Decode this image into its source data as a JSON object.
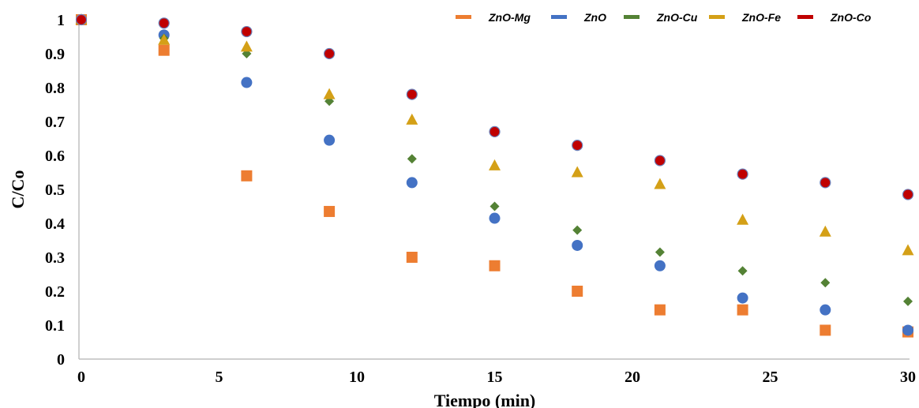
{
  "chart_data": {
    "type": "scatter",
    "title": "",
    "xlabel": "Tiempo (min)",
    "ylabel": "C/Co",
    "xlim": [
      0,
      30
    ],
    "ylim": [
      0,
      1
    ],
    "xticks": [
      "0",
      "5",
      "10",
      "15",
      "20",
      "25",
      "30"
    ],
    "yticks": [
      "0",
      "0.1",
      "0.2",
      "0.3",
      "0.4",
      "0.5",
      "0.6",
      "0.7",
      "0.8",
      "0.9",
      "1"
    ],
    "grid": false,
    "legend_position": "top-right",
    "x": [
      0,
      3,
      6,
      9,
      12,
      15,
      18,
      21,
      24,
      27,
      30
    ],
    "series": [
      {
        "name": "ZnO-Mg",
        "marker": "square",
        "color": "#ED7D31",
        "values": [
          1.0,
          0.91,
          0.54,
          0.435,
          0.3,
          0.275,
          0.2,
          0.145,
          0.145,
          0.085,
          0.08
        ]
      },
      {
        "name": "ZnO",
        "marker": "circle",
        "color": "#4472C4",
        "values": [
          1.0,
          0.955,
          0.815,
          0.645,
          0.52,
          0.415,
          0.335,
          0.275,
          0.18,
          0.145,
          0.085
        ]
      },
      {
        "name": "ZnO-Cu",
        "marker": "diamond",
        "color": "#548235",
        "values": [
          1.0,
          0.945,
          0.9,
          0.76,
          0.59,
          0.45,
          0.38,
          0.315,
          0.26,
          0.225,
          0.17
        ]
      },
      {
        "name": "ZnO-Fe",
        "marker": "triangle",
        "color": "#D4A017",
        "values": [
          1.0,
          0.94,
          0.92,
          0.78,
          0.705,
          0.57,
          0.55,
          0.515,
          0.41,
          0.375,
          0.32
        ]
      },
      {
        "name": "ZnO-Co",
        "marker": "circle-outline",
        "color": "#C00000",
        "values": [
          1.0,
          0.99,
          0.965,
          0.9,
          0.78,
          0.67,
          0.63,
          0.585,
          0.545,
          0.52,
          0.485
        ]
      }
    ]
  }
}
